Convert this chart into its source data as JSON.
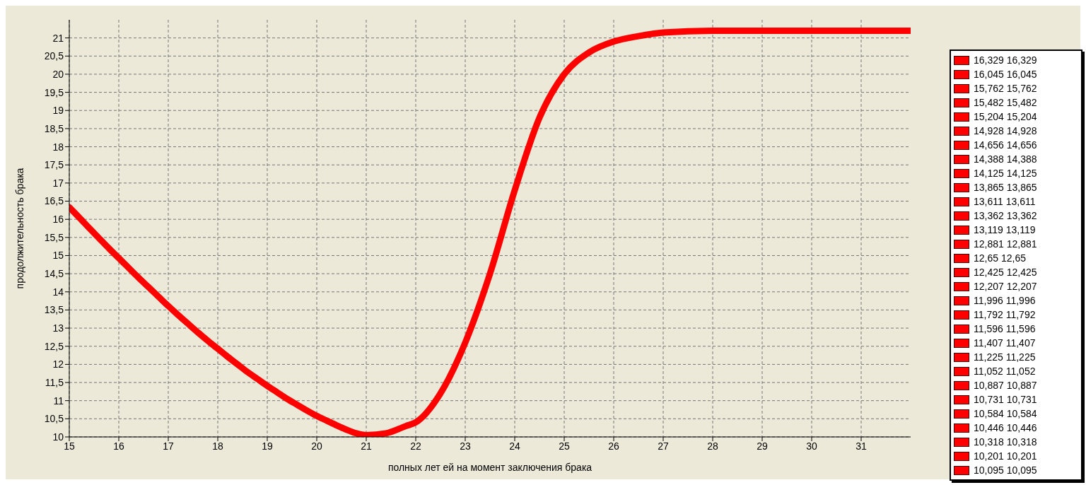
{
  "chart_data": {
    "type": "line",
    "xlabel": "полных лет ей на момент заключения брака",
    "ylabel": "продолжительность брака",
    "x": [
      15,
      15.2,
      15.4,
      15.6,
      15.8,
      16,
      16.2,
      16.4,
      16.6,
      16.8,
      17,
      17.2,
      17.4,
      17.6,
      17.8,
      18,
      18.2,
      18.4,
      18.6,
      18.8,
      19,
      19.2,
      19.4,
      19.6,
      19.8,
      20,
      20.2,
      20.4,
      20.6,
      20.8,
      21,
      21.4,
      21.8,
      22,
      22.5,
      23,
      23.5,
      24,
      24.5,
      25,
      25.5,
      26,
      26.5,
      27,
      28,
      29,
      30,
      31,
      32
    ],
    "series": [
      {
        "color": "#ff0000",
        "values": [
          16.33,
          16.05,
          15.76,
          15.48,
          15.2,
          14.93,
          14.66,
          14.39,
          14.13,
          13.87,
          13.61,
          13.36,
          13.12,
          12.88,
          12.65,
          12.43,
          12.21,
          12,
          11.79,
          11.6,
          11.41,
          11.23,
          11.05,
          10.89,
          10.73,
          10.58,
          10.45,
          10.32,
          10.2,
          10.1,
          10.05,
          10.1,
          10.3,
          10.4,
          11.2,
          12.6,
          14.5,
          16.8,
          18.8,
          20,
          20.6,
          20.9,
          21.05,
          21.15,
          21.2,
          21.2,
          21.2,
          21.2,
          21.2
        ]
      }
    ],
    "xlim": [
      15,
      32
    ],
    "xticks": [
      15,
      16,
      17,
      18,
      19,
      20,
      21,
      22,
      23,
      24,
      25,
      26,
      27,
      28,
      29,
      30,
      31
    ],
    "ylim": [
      10,
      21.5
    ],
    "yticks": [
      10,
      {
        "value": 10.5,
        "label": "10,5"
      },
      11,
      {
        "value": 11.5,
        "label": "11,5"
      },
      12,
      {
        "value": 12.5,
        "label": "12,5"
      },
      13,
      {
        "value": 13.5,
        "label": "13,5"
      },
      14,
      {
        "value": 14.5,
        "label": "14,5"
      },
      15,
      {
        "value": 15.5,
        "label": "15,5"
      },
      16,
      {
        "value": 16.5,
        "label": "16,5"
      },
      17,
      {
        "value": 17.5,
        "label": "17,5"
      },
      18,
      {
        "value": 18.5,
        "label": "18,5"
      },
      19,
      {
        "value": 19.5,
        "label": "19,5"
      },
      20,
      {
        "value": 20.5,
        "label": "20,5"
      },
      21
    ],
    "grid": true,
    "marker": "none",
    "line_style": "solid",
    "annotations": [
      "16,329 16,329",
      "16,045 16,045",
      "15,762 15,762",
      "15,482 15,482",
      "15,204 15,204",
      "14,928 14,928",
      "14,656 14,656",
      "14,388 14,388",
      "14,125 14,125",
      "13,865 13,865",
      "13,611 13,611",
      "13,362 13,362",
      "13,119 13,119",
      "12,881 12,881",
      "12,65 12,65",
      "12,425 12,425",
      "12,207 12,207",
      "11,996 11,996",
      "11,792 11,792",
      "11,596 11,596",
      "11,407 11,407",
      "11,225 11,225",
      "11,052 11,052",
      "10,887 10,887",
      "10,731 10,731",
      "10,584 10,584",
      "10,446 10,446",
      "10,318 10,318",
      "10,201 10,201",
      "10,095 10,095"
    ]
  }
}
